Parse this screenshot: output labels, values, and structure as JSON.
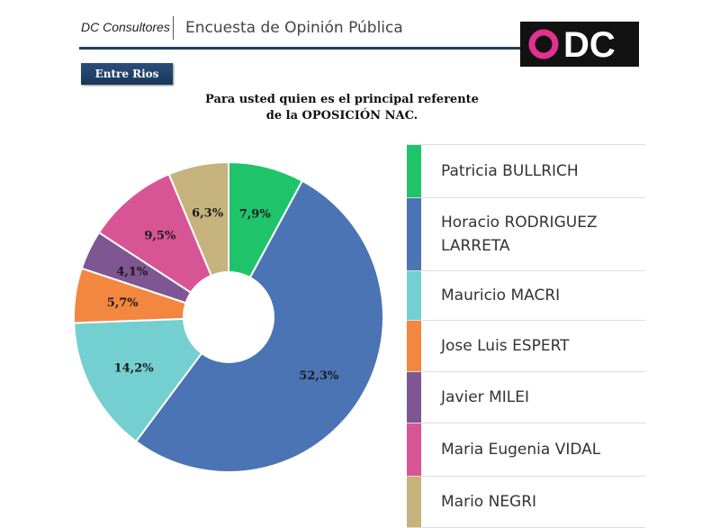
{
  "header": {
    "brand": "DC Consultores",
    "survey_title": "Encuesta de Opinión Pública",
    "logo_text": "DC",
    "logo_ring_color": "#e2318f"
  },
  "region_badge": "Entre Rios",
  "question": {
    "line1": "Para usted quien es el principal referente",
    "line2": "de la OPOSICIÓN NAC."
  },
  "chart_data": {
    "type": "pie",
    "style": "donut",
    "title": "Para usted quien es el principal referente de la OPOSICIÓN NAC.",
    "legend_position": "right",
    "slices": [
      {
        "name": "Patricia BULLRICH",
        "value": 7.9,
        "label": "7,9%",
        "color": "#1fc46a"
      },
      {
        "name": "Horacio RODRIGUEZ LARRETA",
        "value": 52.3,
        "label": "52,3%",
        "color": "#4b74b4"
      },
      {
        "name": "Mauricio MACRI",
        "value": 14.2,
        "label": "14,2%",
        "color": "#74cfd0"
      },
      {
        "name": "Jose Luis ESPERT",
        "value": 5.7,
        "label": "5,7%",
        "color": "#f3873f"
      },
      {
        "name": "Javier MILEI",
        "value": 4.1,
        "label": "4,1%",
        "color": "#7e5692"
      },
      {
        "name": "Maria Eugenia VIDAL",
        "value": 9.5,
        "label": "9,5%",
        "color": "#d85595"
      },
      {
        "name": "Mario NEGRI",
        "value": 6.3,
        "label": "6,3%",
        "color": "#c6b27d"
      }
    ]
  },
  "legend": [
    {
      "line1": "Patricia BULLRICH",
      "line2": ""
    },
    {
      "line1": "Horacio RODRIGUEZ",
      "line2": "LARRETA"
    },
    {
      "line1": "Mauricio MACRI",
      "line2": ""
    },
    {
      "line1": "Jose Luis ESPERT",
      "line2": ""
    },
    {
      "line1": "Javier MILEI",
      "line2": ""
    },
    {
      "line1": "Maria Eugenia VIDAL",
      "line2": ""
    },
    {
      "line1": "Mario NEGRI",
      "line2": ""
    }
  ]
}
